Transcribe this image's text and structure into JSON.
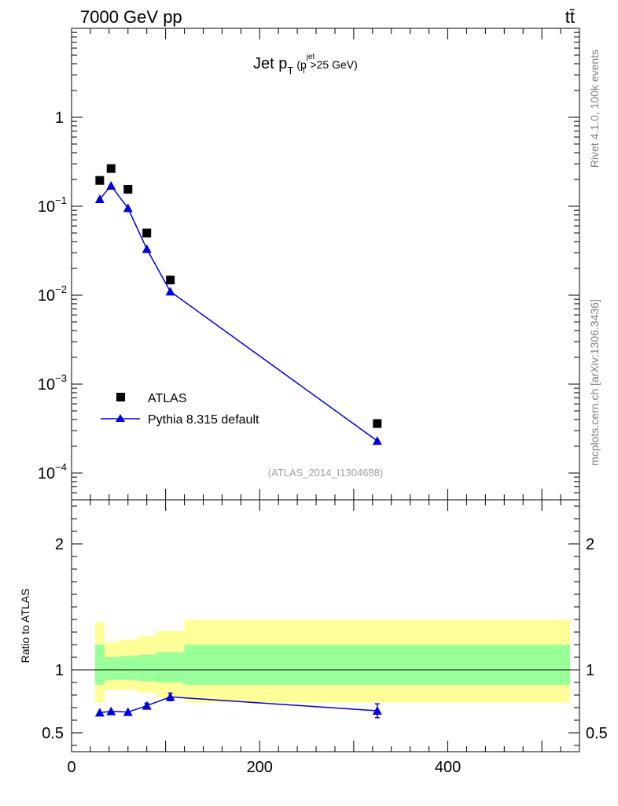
{
  "header": {
    "left": "7000 GeV pp",
    "right": "tt̄"
  },
  "side_labels": {
    "rivet": "Rivet 4.1.0,  100k events",
    "mcplots": "mcplots.cern.ch [arXiv:1306.3436]"
  },
  "colors": {
    "mc": "#0000dd",
    "data": "#000000",
    "band_inner": "#99ff99",
    "band_outer": "#ffff99",
    "refline": "#000000",
    "watermark": "#a0a0a0"
  },
  "chart_data": [
    {
      "type": "scatter",
      "panel": "main",
      "title": {
        "main": "Jet p",
        "sub_T": "T",
        "paren_open": "(p",
        "sup_jet": "jet",
        "rest": ">25 GeV)"
      },
      "watermark": "(ATLAS_2014_I1304688)",
      "yscale": "log",
      "xlim": [
        0,
        540
      ],
      "ylim": [
        5e-05,
        10
      ],
      "yticks": [
        {
          "value": 0.0001,
          "base": "10",
          "exp": "−4"
        },
        {
          "value": 0.001,
          "base": "10",
          "exp": "−3"
        },
        {
          "value": 0.01,
          "base": "10",
          "exp": "−2"
        },
        {
          "value": 0.1,
          "base": "10",
          "exp": "−1"
        },
        {
          "value": 1,
          "base": "1",
          "exp": ""
        }
      ],
      "legend": {
        "position": "bottom-left",
        "data_label": "ATLAS",
        "mc_label": "Pythia 8.315 default"
      },
      "series": [
        {
          "name": "ATLAS",
          "marker": "square",
          "x": [
            30,
            42,
            60,
            80,
            105,
            325
          ],
          "y": [
            0.195,
            0.265,
            0.155,
            0.05,
            0.0148,
            0.00036
          ]
        },
        {
          "name": "Pythia 8.315 default",
          "marker": "triangle",
          "line": true,
          "x": [
            30,
            42,
            60,
            80,
            105,
            325
          ],
          "y": [
            0.12,
            0.17,
            0.095,
            0.033,
            0.011,
            0.00023
          ]
        }
      ]
    },
    {
      "type": "line",
      "panel": "ratio",
      "ylabel": "Ratio to ATLAS",
      "xlim": [
        0,
        540
      ],
      "ylim": [
        0.35,
        2.35
      ],
      "xticks": [
        0,
        200,
        400
      ],
      "yticks": [
        0.5,
        1,
        2
      ],
      "bands": [
        {
          "x0": 25,
          "x1": 35,
          "inner": [
            0.88,
            1.2
          ],
          "outer": [
            0.74,
            1.38
          ]
        },
        {
          "x0": 35,
          "x1": 50,
          "inner": [
            0.92,
            1.1
          ],
          "outer": [
            0.84,
            1.22
          ]
        },
        {
          "x0": 50,
          "x1": 70,
          "inner": [
            0.92,
            1.11
          ],
          "outer": [
            0.84,
            1.24
          ]
        },
        {
          "x0": 70,
          "x1": 90,
          "inner": [
            0.91,
            1.12
          ],
          "outer": [
            0.82,
            1.27
          ]
        },
        {
          "x0": 90,
          "x1": 120,
          "inner": [
            0.9,
            1.14
          ],
          "outer": [
            0.78,
            1.31
          ]
        },
        {
          "x0": 120,
          "x1": 530,
          "inner": [
            0.88,
            1.2
          ],
          "outer": [
            0.74,
            1.4
          ]
        }
      ],
      "series": [
        {
          "name": "Pythia 8.315 default",
          "marker": "triangle",
          "x": [
            30,
            42,
            60,
            80,
            105,
            325
          ],
          "y": [
            0.66,
            0.67,
            0.665,
            0.715,
            0.785,
            0.675
          ],
          "err": [
            0.005,
            0.006,
            0.006,
            0.02,
            0.03,
            0.055
          ]
        }
      ]
    }
  ]
}
